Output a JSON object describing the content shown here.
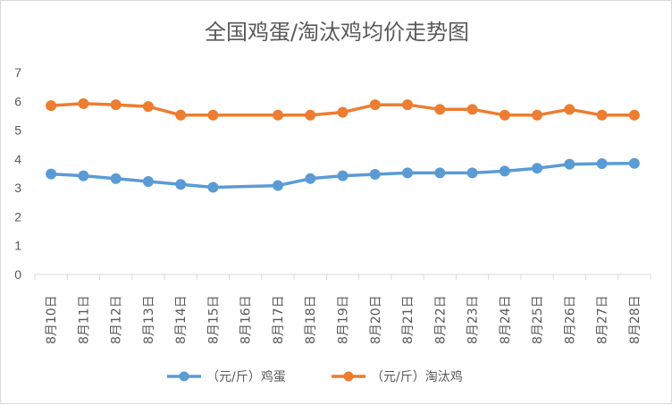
{
  "chart_data": {
    "type": "line",
    "title": "全国鸡蛋/淘汰鸡均价走势图",
    "categories": [
      "8月10日",
      "8月11日",
      "8月12日",
      "8月13日",
      "8月14日",
      "8月15日",
      "8月16日",
      "8月17日",
      "8月18日",
      "8月19日",
      "8月20日",
      "8月21日",
      "8月22日",
      "8月23日",
      "8月24日",
      "8月25日",
      "8月26日",
      "8月27日",
      "8月28日"
    ],
    "series": [
      {
        "name": "（元/斤）鸡蛋",
        "color": "#5b9bd5",
        "values": [
          3.48,
          3.42,
          3.32,
          3.22,
          3.12,
          3.02,
          null,
          3.08,
          3.32,
          3.42,
          3.47,
          3.52,
          3.52,
          3.52,
          3.58,
          3.68,
          3.82,
          3.84,
          3.85
        ]
      },
      {
        "name": "（元/斤）淘汰鸡",
        "color": "#ed7d31",
        "values": [
          5.85,
          5.92,
          5.88,
          5.82,
          5.52,
          5.52,
          null,
          5.52,
          5.52,
          5.62,
          5.88,
          5.88,
          5.72,
          5.72,
          5.52,
          5.52,
          5.72,
          5.52,
          5.52
        ]
      }
    ],
    "yticks": [
      0,
      1,
      2,
      3,
      4,
      5,
      6,
      7
    ],
    "ylim": [
      0,
      7
    ],
    "grid": false,
    "legend": "bottom",
    "xlabel": "",
    "ylabel": ""
  }
}
